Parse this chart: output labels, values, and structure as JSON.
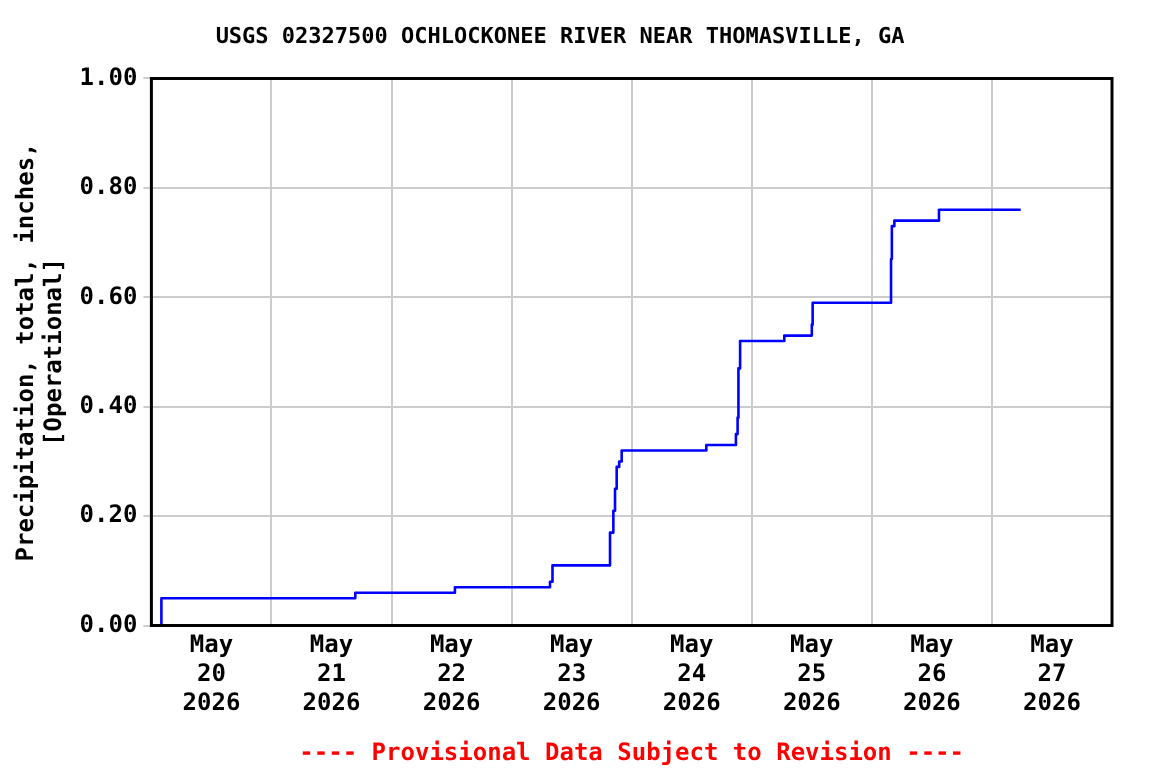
{
  "chart_data": {
    "type": "step",
    "title": "USGS 02327500 OCHLOCKONEE RIVER NEAR THOMASVILLE, GA",
    "ylabel": "Precipitation, total, inches, [Operational]",
    "annotations": [
      "---- Provisional Data Subject to Revision ----"
    ],
    "x": [
      "2026-05-20T00:00",
      "2026-05-20T02:00",
      "2026-05-21T16:45",
      "2026-05-22T12:40",
      "2026-05-23T07:40",
      "2026-05-23T08:10",
      "2026-05-23T19:40",
      "2026-05-23T20:20",
      "2026-05-23T20:40",
      "2026-05-23T21:00",
      "2026-05-23T21:30",
      "2026-05-23T22:00",
      "2026-05-24T14:55",
      "2026-05-24T20:50",
      "2026-05-24T21:10",
      "2026-05-24T21:20",
      "2026-05-24T21:40",
      "2026-05-25T06:30",
      "2026-05-25T12:00",
      "2026-05-25T12:10",
      "2026-05-26T03:50",
      "2026-05-26T04:00",
      "2026-05-26T04:30",
      "2026-05-26T13:25",
      "2026-05-27T05:45"
    ],
    "series": [
      {
        "color": "#0000ff",
        "values": [
          0.0,
          0.05,
          0.06,
          0.07,
          0.08,
          0.11,
          0.17,
          0.21,
          0.25,
          0.29,
          0.3,
          0.32,
          0.33,
          0.35,
          0.38,
          0.47,
          0.52,
          0.53,
          0.55,
          0.59,
          0.67,
          0.73,
          0.74,
          0.76,
          0.76
        ]
      }
    ],
    "xlim": [
      "2026-05-20T00:00",
      "2026-05-28T00:00"
    ],
    "xticks": [
      {
        "value": "2026-05-20T00:00",
        "label": null
      },
      {
        "value": "2026-05-20T12:00",
        "label": "May 20 2026"
      },
      {
        "value": "2026-05-21T00:00",
        "label": null
      },
      {
        "value": "2026-05-21T12:00",
        "label": "May 21 2026"
      },
      {
        "value": "2026-05-22T00:00",
        "label": null
      },
      {
        "value": "2026-05-22T12:00",
        "label": "May 22 2026"
      },
      {
        "value": "2026-05-23T00:00",
        "label": null
      },
      {
        "value": "2026-05-23T12:00",
        "label": "May 23 2026"
      },
      {
        "value": "2026-05-24T00:00",
        "label": null
      },
      {
        "value": "2026-05-24T12:00",
        "label": "May 24 2026"
      },
      {
        "value": "2026-05-25T00:00",
        "label": null
      },
      {
        "value": "2026-05-25T12:00",
        "label": "May 25 2026"
      },
      {
        "value": "2026-05-26T00:00",
        "label": null
      },
      {
        "value": "2026-05-26T12:00",
        "label": "May 26 2026"
      },
      {
        "value": "2026-05-27T00:00",
        "label": null
      },
      {
        "value": "2026-05-27T12:00",
        "label": "May 27 2026"
      },
      {
        "value": "2026-05-28T00:00",
        "label": null
      }
    ],
    "ylim": [
      0,
      1.0
    ],
    "yticks": [
      {
        "value": 0,
        "label": "0.00"
      },
      {
        "value": 0.2,
        "label": "0.20"
      },
      {
        "value": 0.4,
        "label": "0.40"
      },
      {
        "value": 0.6,
        "label": "0.60"
      },
      {
        "value": 0.8,
        "label": "0.80"
      },
      {
        "value": 1.0,
        "label": "1.00"
      }
    ],
    "grid": true,
    "legend": false,
    "line_style": "solid",
    "marker": "none"
  }
}
